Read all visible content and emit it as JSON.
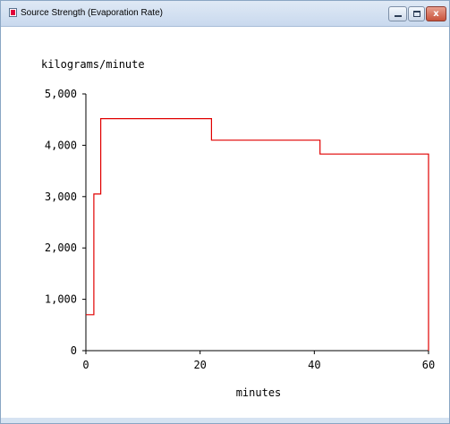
{
  "window": {
    "title": "Source Strength (Evaporation Rate)",
    "icon": "app-icon",
    "controls": {
      "minimize": "minimize-icon",
      "maximize": "maximize-icon",
      "close": "close-icon",
      "close_glyph": "x"
    }
  },
  "colors": {
    "series": "#e00000",
    "axis": "#000000",
    "titlebar": "#d4e1f1"
  },
  "chart_data": {
    "type": "line",
    "step": true,
    "ylabel": "kilograms/minute",
    "xlabel": "minutes",
    "xlim": [
      0,
      60
    ],
    "ylim": [
      0,
      5000
    ],
    "x_ticks": [
      "0",
      "20",
      "40",
      "60"
    ],
    "x_tick_values": [
      0,
      20,
      40,
      60
    ],
    "y_ticks": [
      "0",
      "1,000",
      "2,000",
      "3,000",
      "4,000",
      "5,000"
    ],
    "y_tick_values": [
      0,
      1000,
      2000,
      3000,
      4000,
      5000
    ],
    "grid": false,
    "series": [
      {
        "x": [
          0,
          1.4,
          1.4,
          2.6,
          2.6,
          22,
          22,
          41,
          41,
          60,
          60
        ],
        "y": [
          700,
          700,
          3050,
          3050,
          4520,
          4520,
          4100,
          4100,
          3830,
          3830,
          0
        ]
      }
    ]
  }
}
